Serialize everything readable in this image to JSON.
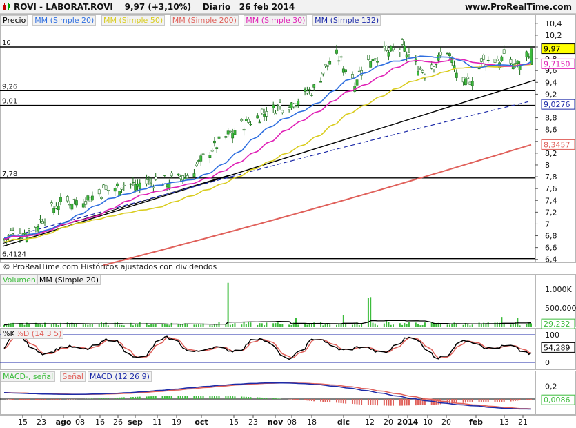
{
  "header": {
    "title": "ROVI - LABORAT.ROVI",
    "price_change": "9,97 (+3,10%)",
    "period": "Diario",
    "date": "26 feb 2014",
    "site": "www.ProRealTime.com"
  },
  "colors": {
    "sma20": "#2f6fe0",
    "sma50": "#d9cc1e",
    "sma200": "#e0605a",
    "sma30": "#e021b6",
    "sma132": "#1c2aa8",
    "candle_up": "#3cbc3c",
    "candle_down": "#3cbc3c",
    "volume": "#3cbc3c",
    "k_line": "#000000",
    "d_line": "#e0605a",
    "macd_line": "#1c2aa8",
    "signal_line": "#e0605a"
  },
  "price_panel": {
    "legend": [
      "Precio",
      "MM (Simple 20)",
      "MM (Simple 50)",
      "MM (Simple 200)",
      "MM (Simple 30)",
      "MM (Simple 132)"
    ],
    "watermark": "© ProRealTime.com  Históricos ajustados con dividendos",
    "hlines": [
      {
        "label": "10",
        "value": 10.0
      },
      {
        "label": "9,26",
        "value": 9.26
      },
      {
        "label": "9,01",
        "value": 9.01
      },
      {
        "label": "7,78",
        "value": 7.78
      },
      {
        "label": "6,4124",
        "value": 6.4124
      }
    ],
    "axis_labels": [
      "10,4",
      "10,2",
      "10",
      "9,8",
      "9,6",
      "9,4",
      "9,2",
      "9",
      "8,8",
      "8,6",
      "8,4",
      "8,2",
      "8",
      "7,8",
      "7,6",
      "7,4",
      "7,2",
      "7",
      "6,8",
      "6,6",
      "6,4"
    ],
    "value_tags": [
      {
        "label": "9,97",
        "value": 9.97,
        "bg": "#ffff00",
        "fg": "#000000",
        "border": "#000000"
      },
      {
        "label": "9,7150",
        "value": 9.715,
        "bg": "#ffffff",
        "fg": "#e021b6",
        "border": "#e021b6"
      },
      {
        "label": "9,0276",
        "value": 9.0276,
        "bg": "#ffffff",
        "fg": "#1c2aa8",
        "border": "#1c2aa8"
      },
      {
        "label": "8,3457",
        "value": 8.3457,
        "bg": "#ffffff",
        "fg": "#e0605a",
        "border": "#e0605a"
      }
    ]
  },
  "volume_panel": {
    "legend": [
      "Volumen",
      "MM (Simple 20)"
    ],
    "axis_labels": [
      "1.000K",
      "500.000"
    ],
    "tag": "29.232"
  },
  "stoch_panel": {
    "legend": [
      "%K",
      "%D (14 3 5)"
    ],
    "axis_labels": [
      "100",
      "50",
      "0"
    ],
    "tag": "54,289"
  },
  "macd_panel": {
    "legend": [
      "MACD-, señal",
      "Señal",
      "MACD (12 26 9)"
    ],
    "axis_labels": [
      "0,2",
      "0"
    ],
    "tag": "0,0086"
  },
  "x_axis": {
    "labels": [
      "15",
      "23",
      "ago",
      "08",
      "16",
      "26",
      "sep",
      "11",
      "19",
      "oct",
      "15",
      "23",
      "nov",
      "08",
      "18",
      "dic",
      "12",
      "20",
      "2014",
      "10",
      "20",
      "feb",
      "13",
      "21"
    ]
  },
  "chart_data": {
    "type": "candlestick",
    "title": "ROVI - LABORAT.ROVI",
    "period": "Diario",
    "x_range": [
      "2013-07-08",
      "2014-02-26"
    ],
    "ylim": [
      6.35,
      10.55
    ],
    "y_scale": "linear",
    "grid": false,
    "closing_path": {
      "dates": [
        "2013-07-08",
        "2013-07-20",
        "2013-08-01",
        "2013-08-15",
        "2013-08-28",
        "2013-09-10",
        "2013-09-22",
        "2013-09-27",
        "2013-10-07",
        "2013-10-18",
        "2013-11-01",
        "2013-11-12",
        "2013-11-22",
        "2013-12-01",
        "2013-12-10",
        "2013-12-18",
        "2014-01-01",
        "2014-01-10",
        "2014-01-20",
        "2014-01-27",
        "2014-02-05",
        "2014-02-13",
        "2014-02-20",
        "2014-02-26"
      ],
      "close": [
        6.75,
        6.9,
        7.35,
        7.45,
        7.65,
        7.7,
        7.75,
        7.8,
        8.25,
        8.6,
        8.9,
        9.05,
        9.3,
        9.9,
        9.45,
        9.85,
        9.95,
        9.55,
        9.95,
        9.3,
        9.75,
        9.8,
        9.7,
        9.97
      ]
    },
    "series": [
      {
        "name": "MM (Simple 20)",
        "values_last": null
      },
      {
        "name": "MM (Simple 50)",
        "values_last": null
      },
      {
        "name": "MM (Simple 200)",
        "values_last": 8.3457
      },
      {
        "name": "MM (Simple 30)",
        "values_last": 9.715
      },
      {
        "name": "MM (Simple 132)",
        "values_last": 9.0276
      }
    ],
    "last_close": 9.97,
    "change_pct": 3.1
  }
}
